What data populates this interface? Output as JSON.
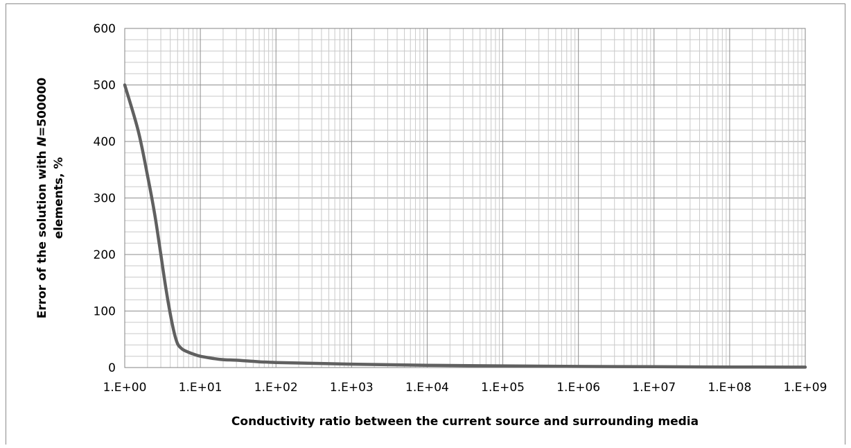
{
  "chart_data": {
    "type": "line",
    "title": "",
    "xlabel": "Conductivity ratio between the current source and surrounding media",
    "ylabel_line1": "Error of the solution with ",
    "ylabel_italic": "N",
    "ylabel_line1_rest": "=500000",
    "ylabel_line2": "elements, %",
    "xscale": "log",
    "xlim": [
      1,
      1000000000
    ],
    "ylim": [
      0,
      600
    ],
    "grid": true,
    "legend": "none",
    "line_color": "#606060",
    "x_tick_labels": [
      "1.E+00",
      "1.E+01",
      "1.E+02",
      "1.E+03",
      "1.E+04",
      "1.E+05",
      "1.E+06",
      "1.E+07",
      "1.E+08",
      "1.E+09"
    ],
    "y_tick_labels": [
      "0",
      "100",
      "200",
      "300",
      "400",
      "500",
      "600"
    ],
    "series": [
      {
        "x": [
          1,
          1.5,
          2,
          2.5,
          3,
          3.5,
          4,
          4.5,
          5,
          5.5,
          6,
          7,
          8,
          10,
          15,
          20,
          30,
          50,
          100,
          1000,
          10000,
          100000,
          1000000,
          10000000,
          100000000,
          1000000000
        ],
        "y": [
          500,
          420,
          340,
          270,
          200,
          140,
          95,
          62,
          42,
          35,
          31,
          27,
          24,
          20,
          16,
          14,
          13,
          11,
          9,
          6,
          4,
          3,
          2,
          1.5,
          1,
          0.7
        ]
      }
    ]
  }
}
